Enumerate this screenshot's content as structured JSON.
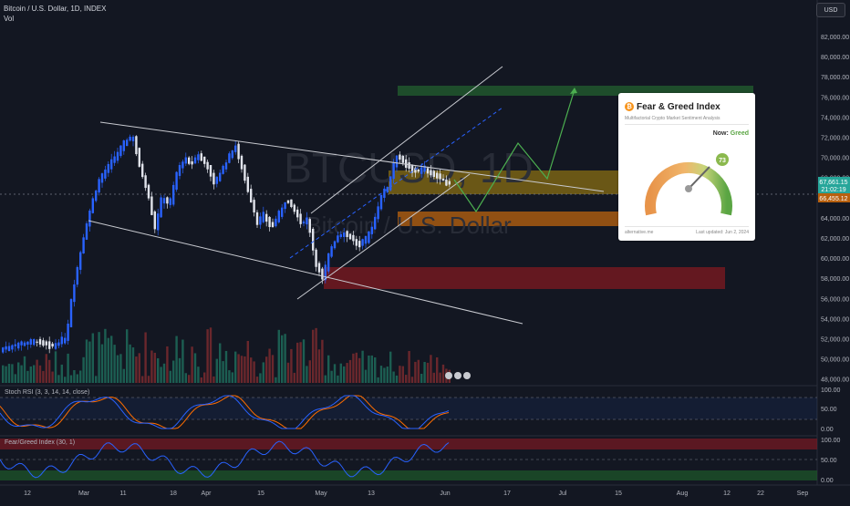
{
  "header": {
    "symbol_line": "Bitcoin / U.S. Dollar, 1D, INDEX",
    "volume_label": "Vol"
  },
  "currency_button": "USD",
  "watermark": {
    "ticker": "BTCUSD, 1D",
    "name": "Bitcoin / U.S. Dollar"
  },
  "price_axis": [
    "82,000.00",
    "80,000.00",
    "78,000.00",
    "76,000.00",
    "74,000.00",
    "72,000.00",
    "70,000.00",
    "68,000.00",
    "66,000.00",
    "64,000.00",
    "62,000.00",
    "60,000.00",
    "58,000.00",
    "56,000.00",
    "54,000.00",
    "52,000.00",
    "50,000.00",
    "48,000.00"
  ],
  "price_tags": {
    "last_price": "67,661.15",
    "countdown": "21:02:19",
    "other": "66,455.12"
  },
  "time_axis": [
    "12",
    "Mar",
    "11",
    "18",
    "Apr",
    "15",
    "May",
    "13",
    "Jun",
    "17",
    "Jul",
    "15",
    "Aug",
    "12",
    "22",
    "Sep"
  ],
  "stoch_rsi": {
    "label": "Stoch RSI (3, 3, 14, 14, close)",
    "axis": [
      "100.00",
      "50.00",
      "0.00"
    ]
  },
  "fear_greed_indicator": {
    "label": "Fear/Greed Index (30, 1)",
    "axis": [
      "100.00",
      "50.00",
      "0.00"
    ]
  },
  "fear_greed_card": {
    "title": "Fear & Greed Index",
    "subtitle": "Multifactorial Crypto Market Sentiment Analysis",
    "now_label": "Now:",
    "now_value": "Greed",
    "value": "73",
    "source": "alternative.me",
    "updated": "Last updated: Jun 2, 2024"
  },
  "colors": {
    "background": "#131722",
    "up": "#2962ff",
    "down": "#ffffff",
    "zone_green": "#1e5a2a",
    "zone_yellow": "#8a6d14",
    "zone_orange": "#b8600e",
    "zone_red": "#7a1a22",
    "stoch_k": "#2962ff",
    "stoch_d": "#ff6d00",
    "fg_line": "#2962ff"
  }
}
